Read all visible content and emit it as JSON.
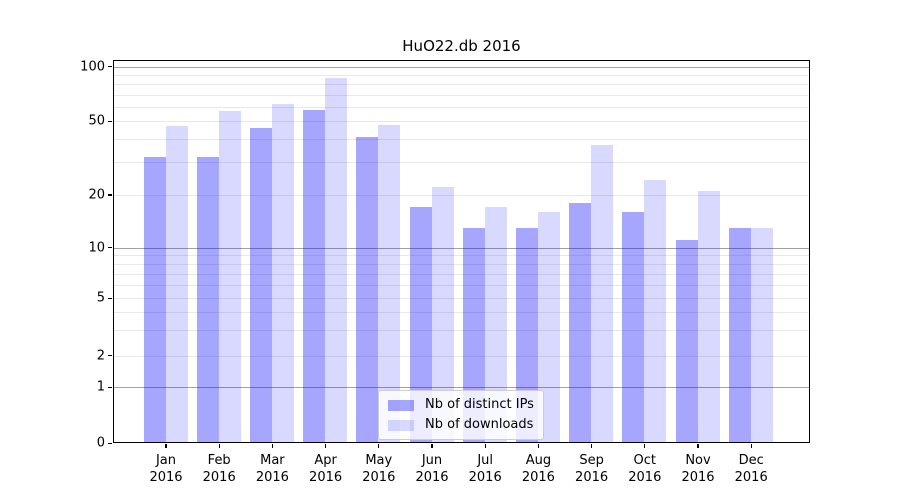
{
  "figure": {
    "title": "HuO22.db 2016"
  },
  "colors": {
    "background": "#ffffff",
    "bar_distinct_ips": "rgba(0,0,255,0.35)",
    "bar_downloads": "rgba(0,0,255,0.15)",
    "grid_major": "#a3a3a3",
    "grid_minor": "#e8e8e8",
    "spine": "#000000",
    "legend_border": "#cccccc",
    "legend_background": "rgba(255,255,255,0.8)"
  },
  "chart_data": {
    "type": "bar",
    "title": "HuO22.db 2016",
    "x": {
      "months": [
        "Jan",
        "Feb",
        "Mar",
        "Apr",
        "May",
        "Jun",
        "Jul",
        "Aug",
        "Sep",
        "Oct",
        "Nov",
        "Dec"
      ],
      "year": "2016"
    },
    "series": [
      {
        "name": "Nb of distinct IPs",
        "color": "rgba(0,0,255,0.35)",
        "values": [
          32,
          32,
          46,
          58,
          41,
          17,
          13,
          13,
          18,
          16,
          11,
          13
        ]
      },
      {
        "name": "Nb of downloads",
        "color": "rgba(0,0,255,0.15)",
        "values": [
          47,
          57,
          62,
          87,
          48,
          22,
          17,
          16,
          37,
          24,
          21,
          13
        ]
      }
    ],
    "y_axis": {
      "scale": "symlog-like (log above 1, compressed linear toward 0)",
      "tick_values": [
        0,
        1,
        2,
        5,
        10,
        20,
        50,
        100
      ],
      "anchors": [
        [
          0,
          0.0
        ],
        [
          1,
          0.146
        ],
        [
          2,
          0.228
        ],
        [
          5,
          0.378
        ],
        [
          10,
          0.51
        ],
        [
          20,
          0.648
        ],
        [
          50,
          0.84
        ],
        [
          100,
          0.983
        ]
      ],
      "major_grid_values": [
        1,
        10,
        100
      ],
      "minor_grid_values": [
        2,
        3,
        4,
        5,
        6,
        7,
        8,
        9,
        20,
        30,
        40,
        50,
        60,
        70,
        80,
        90
      ],
      "ylim": [
        0,
        108
      ]
    },
    "legend": {
      "position": "lower center",
      "entries": [
        "Nb of distinct IPs",
        "Nb of downloads"
      ]
    },
    "grid": true
  }
}
